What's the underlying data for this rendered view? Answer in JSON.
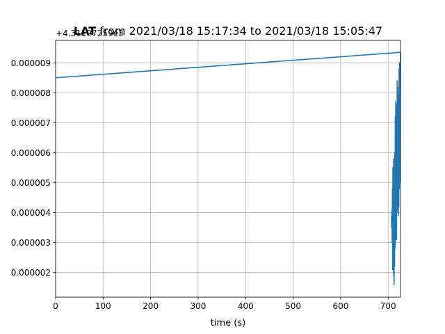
{
  "chart_data": {
    "type": "line",
    "title_bold": "LAT",
    "title_rest": " from 2021/03/18 15:17:34 to 2021/03/18 15:05:47",
    "offset_label": "+4.31197259e3",
    "xlabel": "time (s)",
    "ylabel": "",
    "xlim": [
      0,
      726
    ],
    "ylim": [
      1.18e-06,
      9.75e-06
    ],
    "grid": true,
    "x_ticks": [
      0,
      100,
      200,
      300,
      400,
      500,
      600,
      700
    ],
    "x_tick_labels": [
      "0",
      "100",
      "200",
      "300",
      "400",
      "500",
      "600",
      "700"
    ],
    "y_ticks": [
      2e-06,
      3e-06,
      4e-06,
      5e-06,
      6e-06,
      7e-06,
      8e-06,
      9e-06
    ],
    "y_tick_labels": [
      "0.000002",
      "0.000003",
      "0.000004",
      "0.000005",
      "0.000006",
      "0.000007",
      "0.000008",
      "0.000009"
    ],
    "line_color": "#1f77b4",
    "series": [
      {
        "x": [
          0,
          726,
          725,
          724,
          723.5,
          723,
          722.5,
          722,
          721.5,
          721,
          720.5,
          720,
          719.5,
          719,
          718.5,
          718,
          717.5,
          717,
          716.5,
          716,
          715.5,
          715,
          714.5,
          714,
          713.5,
          713,
          712.5,
          712,
          711.5,
          711,
          710.5,
          710,
          709.5,
          709,
          708.5,
          708,
          707.5,
          707
        ],
        "y": [
          8.5e-06,
          9.35e-06,
          5e-06,
          9e-06,
          4.8e-06,
          8.8e-06,
          4.2e-06,
          8.2e-06,
          3.9e-06,
          7.8e-06,
          4.5e-06,
          8e-06,
          4.1e-06,
          8.4e-06,
          4e-06,
          7.6e-06,
          3.1e-06,
          7e-06,
          3.5e-06,
          7.7e-06,
          3e-06,
          7.2e-06,
          2.8e-06,
          6e-06,
          2.2e-06,
          5.5e-06,
          1.6e-06,
          5e-06,
          1.9e-06,
          5.8e-06,
          2.4e-06,
          5.5e-06,
          2.1e-06,
          4.8e-06,
          3e-06,
          4.1e-06,
          3.5e-06,
          3.9e-06
        ]
      }
    ]
  }
}
